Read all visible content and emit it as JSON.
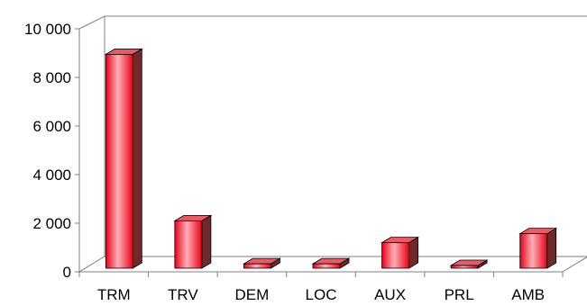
{
  "chart_data": {
    "type": "bar",
    "title": "",
    "xlabel": "",
    "ylabel": "",
    "categories": [
      "TRM",
      "TRV",
      "DEM",
      "LOC",
      "AUX",
      "PRL",
      "AMB"
    ],
    "values": [
      8800,
      1950,
      180,
      180,
      1050,
      110,
      1420
    ],
    "ylim": [
      0,
      10000
    ],
    "yticks": [
      0,
      2000,
      4000,
      6000,
      8000,
      10000
    ],
    "ytick_labels": [
      "0",
      "2 000",
      "4 000",
      "6 000",
      "8 000",
      "10 000"
    ],
    "grid": false,
    "legend": "none",
    "style": "3d-column",
    "colors": {
      "bar_front_center": "#ffb0b6",
      "bar_front_edge": "#e8001a",
      "bar_top": "#e85a66",
      "bar_side": "#6e2a2a",
      "wall": "#ffffff",
      "floor": "#ffffff",
      "axis": "#808080"
    }
  }
}
